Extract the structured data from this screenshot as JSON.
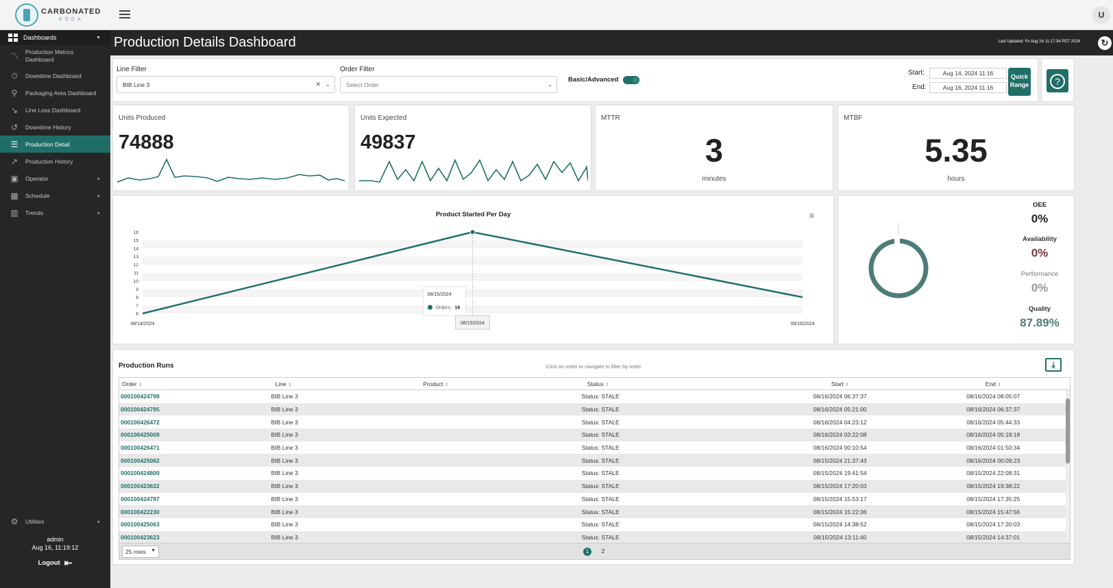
{
  "app": {
    "logo_text": "CARBONATED",
    "logo_sub": "SODA",
    "user_initial": "U"
  },
  "sidebar": {
    "section": "Dashboards",
    "items": [
      {
        "label": "Production Metrics Dashboard",
        "icon": "chart-line-icon"
      },
      {
        "label": "Downtime Dashboard",
        "icon": "stopwatch-icon"
      },
      {
        "label": "Packaging Area Dashboard",
        "icon": "map-pin-icon"
      },
      {
        "label": "Line Loss Dashboard",
        "icon": "trend-down-icon"
      },
      {
        "label": "Downtime History",
        "icon": "history-icon"
      },
      {
        "label": "Production Detail",
        "icon": "list-detail-icon"
      },
      {
        "label": "Production History",
        "icon": "trend-up-icon"
      },
      {
        "label": "Operator",
        "icon": "operator-icon"
      },
      {
        "label": "Schedule",
        "icon": "calendar-icon"
      },
      {
        "label": "Trends",
        "icon": "bar-chart-icon"
      }
    ],
    "utilities": "Utilities",
    "user": "admin",
    "datetime": "Aug 16, 11:19:12",
    "logout": "Logout"
  },
  "header": {
    "title": "Production Details Dashboard",
    "last_updated": "Last Updated: Fri Aug 16 11:17:34 PDT 2024"
  },
  "filters": {
    "line_label": "Line Filter",
    "line_value": "BIB Line 3",
    "order_label": "Order Filter",
    "order_placeholder": "Select Order",
    "mode_label": "Basic/Advanced",
    "start_label": "Start:",
    "start_value": "Aug 14, 2024 11:16",
    "end_label": "End:",
    "end_value": "Aug 16, 2024 11:16",
    "quick_range": "Quick Range"
  },
  "kpis": {
    "units_produced_label": "Units Produced",
    "units_produced": "74888",
    "units_expected_label": "Units Expected",
    "units_expected": "49837",
    "mttr_label": "MTTR",
    "mttr": "3",
    "mttr_unit": "minutes",
    "mtbf_label": "MTBF",
    "mtbf": "5.35",
    "mtbf_unit": "hours"
  },
  "chart_data": {
    "type": "line",
    "title": "Product Started Per Day",
    "x": [
      "08/14/2024",
      "08/15/2024",
      "08/16/2024"
    ],
    "series": [
      {
        "name": "Orders",
        "values": [
          6,
          16,
          8
        ]
      }
    ],
    "yticks": [
      6,
      7,
      8,
      9,
      10,
      11,
      12,
      13,
      14,
      15,
      16
    ],
    "ylim": [
      6,
      16
    ],
    "tooltip": {
      "date": "08/15/2024",
      "label": "Orders:",
      "value": "16"
    },
    "color": "#1f6f68"
  },
  "oee": {
    "oee_label": "OEE",
    "oee": "0%",
    "availability_label": "Availability",
    "availability": "0%",
    "performance_label": "Performance",
    "performance": "0%",
    "quality_label": "Quality",
    "quality": "87.89%"
  },
  "table": {
    "title": "Production Runs",
    "hint": "Click on order to navigate to filter by order",
    "columns": [
      "Order",
      "Line",
      "Product",
      "Status",
      "Start",
      "End"
    ],
    "rows": [
      [
        "000100424799",
        "BIB Line 3",
        "",
        "Status: STALE",
        "08/16/2024 06:37:37",
        "08/16/2024 08:05:07"
      ],
      [
        "000100424795",
        "BIB Line 3",
        "",
        "Status: STALE",
        "08/16/2024 05:21:00",
        "08/16/2024 06:37:37"
      ],
      [
        "000100426472",
        "BIB Line 3",
        "",
        "Status: STALE",
        "08/16/2024 04:23:12",
        "08/16/2024 05:44:33"
      ],
      [
        "000100425009",
        "BIB Line 3",
        "",
        "Status: STALE",
        "08/16/2024 03:22:08",
        "08/16/2024 05:18:18"
      ],
      [
        "000100426471",
        "BIB Line 3",
        "",
        "Status: STALE",
        "08/16/2024 00:10:54",
        "08/16/2024 01:50:34"
      ],
      [
        "000100425062",
        "BIB Line 3",
        "",
        "Status: STALE",
        "08/15/2024 21:37:43",
        "08/16/2024 00:09:23"
      ],
      [
        "000100424800",
        "BIB Line 3",
        "",
        "Status: STALE",
        "08/15/2024 19:41:54",
        "08/15/2024 22:08:31"
      ],
      [
        "000100423622",
        "BIB Line 3",
        "",
        "Status: STALE",
        "08/15/2024 17:20:03",
        "08/15/2024 19:38:22"
      ],
      [
        "000100424797",
        "BIB Line 3",
        "",
        "Status: STALE",
        "08/15/2024 15:53:17",
        "08/15/2024 17:35:25"
      ],
      [
        "000100422230",
        "BIB Line 3",
        "",
        "Status: STALE",
        "08/15/2024 15:22:06",
        "08/15/2024 15:47:56"
      ],
      [
        "000100425063",
        "BIB Line 3",
        "",
        "Status: STALE",
        "08/15/2024 14:38:52",
        "08/15/2024 17:20:03"
      ],
      [
        "000100423623",
        "BIB Line 3",
        "",
        "Status: STALE",
        "08/15/2024 13:11:40",
        "08/15/2024 14:37:01"
      ]
    ],
    "rows_per_page": "25 rows",
    "pages": [
      "1",
      "2"
    ]
  }
}
